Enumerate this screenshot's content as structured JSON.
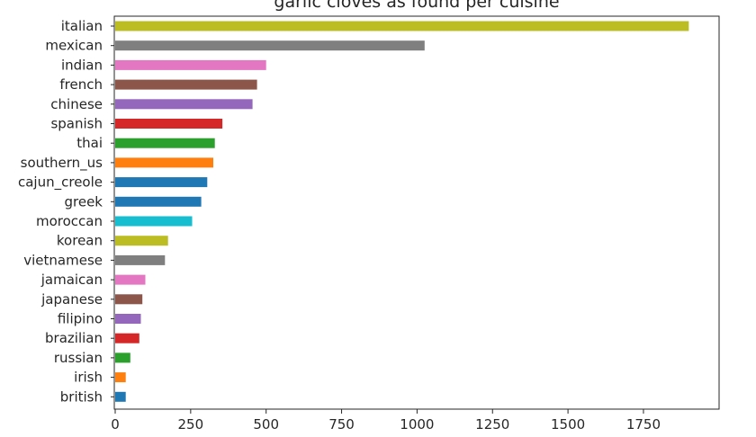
{
  "chart_data": {
    "type": "bar",
    "orientation": "horizontal",
    "title": "garlic cloves as found per cuisine",
    "xlabel": "",
    "ylabel": "",
    "xlim": [
      0,
      2000
    ],
    "x_ticks": [
      0,
      250,
      500,
      750,
      1000,
      1250,
      1500,
      1750
    ],
    "x_tick_labels": [
      "0",
      "250",
      "500",
      "750",
      "1000",
      "1250",
      "1500",
      "1750"
    ],
    "grid": false,
    "categories": [
      "italian",
      "mexican",
      "indian",
      "french",
      "chinese",
      "spanish",
      "thai",
      "southern_us",
      "cajun_creole",
      "greek",
      "moroccan",
      "korean",
      "vietnamese",
      "jamaican",
      "japanese",
      "filipino",
      "brazilian",
      "russian",
      "irish",
      "british"
    ],
    "values": [
      1900,
      1025,
      500,
      470,
      455,
      355,
      330,
      325,
      305,
      285,
      255,
      175,
      165,
      100,
      90,
      85,
      80,
      50,
      35,
      35
    ],
    "colors": [
      "#bcbd22",
      "#7f7f7f",
      "#e377c2",
      "#8c564b",
      "#9467bd",
      "#d62728",
      "#2ca02c",
      "#ff7f0e",
      "#1f77b4",
      "#1f77b4",
      "#17becf",
      "#bcbd22",
      "#7f7f7f",
      "#e377c2",
      "#8c564b",
      "#9467bd",
      "#d62728",
      "#2ca02c",
      "#ff7f0e",
      "#1f77b4"
    ]
  }
}
